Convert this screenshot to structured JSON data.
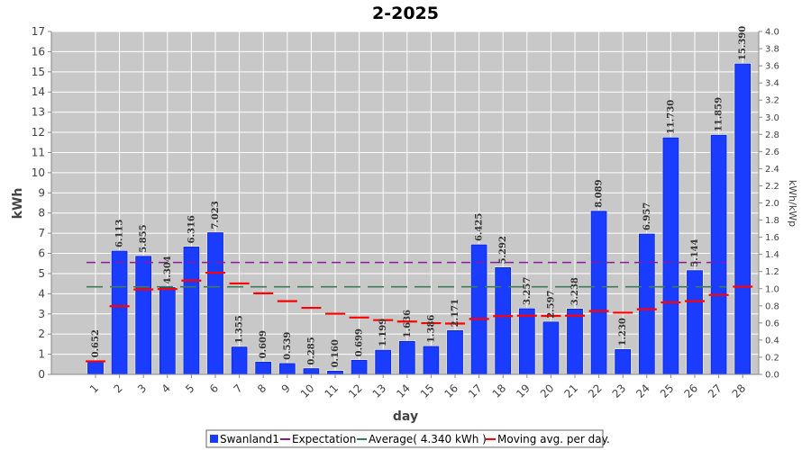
{
  "chart_data": {
    "type": "bar",
    "title": "2-2025",
    "xlabel": "day",
    "ylabel": "kWh",
    "y2label": "kWh/kWp",
    "ylim": [
      0,
      17
    ],
    "y2lim": [
      0,
      4.0
    ],
    "categories": [
      "1",
      "2",
      "3",
      "4",
      "5",
      "6",
      "7",
      "8",
      "9",
      "10",
      "11",
      "12",
      "13",
      "14",
      "15",
      "16",
      "17",
      "18",
      "19",
      "20",
      "21",
      "22",
      "23",
      "24",
      "25",
      "26",
      "27",
      "28"
    ],
    "series": [
      {
        "name": "Swanland1",
        "type": "bar",
        "color": "#1a3cff",
        "values": [
          0.652,
          6.113,
          5.855,
          4.304,
          6.316,
          7.023,
          1.355,
          0.609,
          0.539,
          0.285,
          0.16,
          0.699,
          1.199,
          1.636,
          1.386,
          2.171,
          6.425,
          5.292,
          3.257,
          2.597,
          3.238,
          8.089,
          1.23,
          6.957,
          11.73,
          5.144,
          11.859,
          15.39
        ],
        "labels": [
          "0.652",
          "6.113",
          "5.855",
          "4.304",
          "6.316",
          "7.023",
          "1.355",
          "0.609",
          "0.539",
          "0.285",
          "0.160",
          "0.699",
          "1.199",
          "1.636",
          "1.386",
          "2.171",
          "6.425",
          "5.292",
          "3.257",
          "2.597",
          "3.238",
          "8.089",
          "1.230",
          "6.957",
          "11.730",
          "5.144",
          "11.859",
          "15.390"
        ]
      },
      {
        "name": "Moving avg. per day.",
        "type": "step",
        "color": "#ff0000",
        "values": [
          0.65,
          3.38,
          4.21,
          4.23,
          4.65,
          5.04,
          4.51,
          4.02,
          3.63,
          3.3,
          3.01,
          2.82,
          2.69,
          2.62,
          2.54,
          2.52,
          2.75,
          2.89,
          2.91,
          2.9,
          2.91,
          3.14,
          3.06,
          3.23,
          3.57,
          3.63,
          3.94,
          4.35
        ]
      }
    ],
    "lines": [
      {
        "name": "Expectation",
        "value": 5.55,
        "color": "#8b1a9b",
        "dash": "10,6"
      },
      {
        "name": "Average( 4.340 kWh )",
        "value": 4.34,
        "color": "#3d7a5a",
        "dash": "18,8"
      }
    ],
    "y_ticks": [
      "0",
      "1",
      "2",
      "3",
      "4",
      "5",
      "6",
      "7",
      "8",
      "9",
      "10",
      "11",
      "12",
      "13",
      "14",
      "15",
      "16",
      "17"
    ],
    "y2_ticks": [
      "0.0",
      "0.2",
      "0.4",
      "0.6",
      "0.8",
      "1.0",
      "1.2",
      "1.4",
      "1.6",
      "1.8",
      "2.0",
      "2.2",
      "2.4",
      "2.6",
      "2.8",
      "3.0",
      "3.2",
      "3.4",
      "3.6",
      "3.8",
      "4.0"
    ],
    "plot_background": "#c8c8c8",
    "grid": true,
    "legend_position": "bottom",
    "legend": [
      "Swanland1",
      "Expectation",
      "Average( 4.340 kWh )",
      "Moving avg. per day."
    ]
  }
}
